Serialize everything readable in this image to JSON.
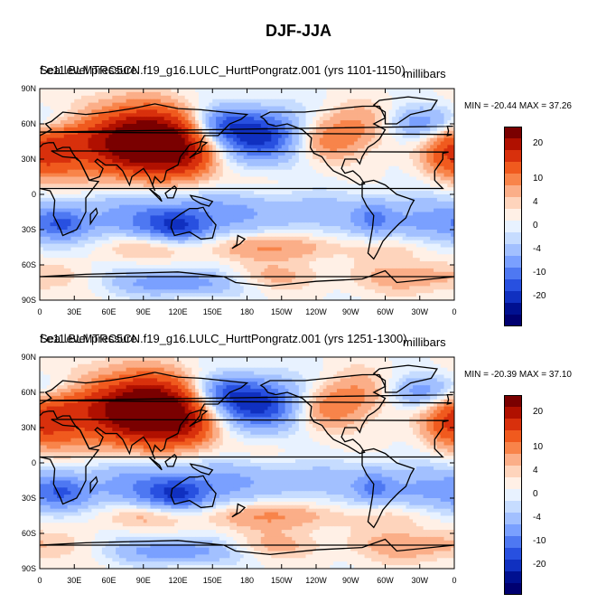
{
  "figure": {
    "title": "DJF-JJA"
  },
  "panels": [
    {
      "title": "Sea level pressure",
      "subtitle": "f.e11.BLMTRC5CN.f19_g16.LULC_HurttPongratz.001 (yrs 1101-1150)",
      "units": "millibars",
      "stats": "MIN = -20.44  MAX =  37.26"
    },
    {
      "title": "Sea level pressure",
      "subtitle": "f.e11.BLMTRC5CN.f19_g16.LULC_HurttPongratz.001 (yrs 1251-1300)",
      "units": "millibars",
      "stats": "MIN = -20.39  MAX =  37.10"
    }
  ],
  "axes": {
    "lat_labels": [
      "90N",
      "60N",
      "30N",
      "0",
      "30S",
      "60S",
      "90S"
    ],
    "lon_labels": [
      "0",
      "30E",
      "60E",
      "90E",
      "120E",
      "150E",
      "180",
      "150W",
      "120W",
      "90W",
      "60W",
      "30W",
      "0"
    ]
  },
  "colorbar": {
    "labels": [
      "20",
      "10",
      "4",
      "0",
      "-4",
      "-10",
      "-20"
    ],
    "colors": [
      "#7a0000",
      "#b01000",
      "#d8300c",
      "#f05a1e",
      "#f8844a",
      "#fbae88",
      "#fed4bc",
      "#fff0e6",
      "#e8f2ff",
      "#c6dcff",
      "#a2c0ff",
      "#7aa0ff",
      "#4e78f2",
      "#2850e0",
      "#1030c0",
      "#001090",
      "#000070"
    ]
  },
  "chart_data": {
    "type": "heatmap",
    "title": "DJF-JJA",
    "variable": "Sea level pressure",
    "units": "millibars",
    "x_range_deg": [
      0,
      360
    ],
    "y_range_deg": [
      -90,
      90
    ],
    "panels": [
      {
        "years": "1101-1150",
        "min": -20.44,
        "max": 37.26
      },
      {
        "years": "1251-1300",
        "min": -20.39,
        "max": 37.1
      }
    ],
    "contour_levels": [
      -20,
      -10,
      -4,
      0,
      4,
      10,
      20
    ]
  }
}
